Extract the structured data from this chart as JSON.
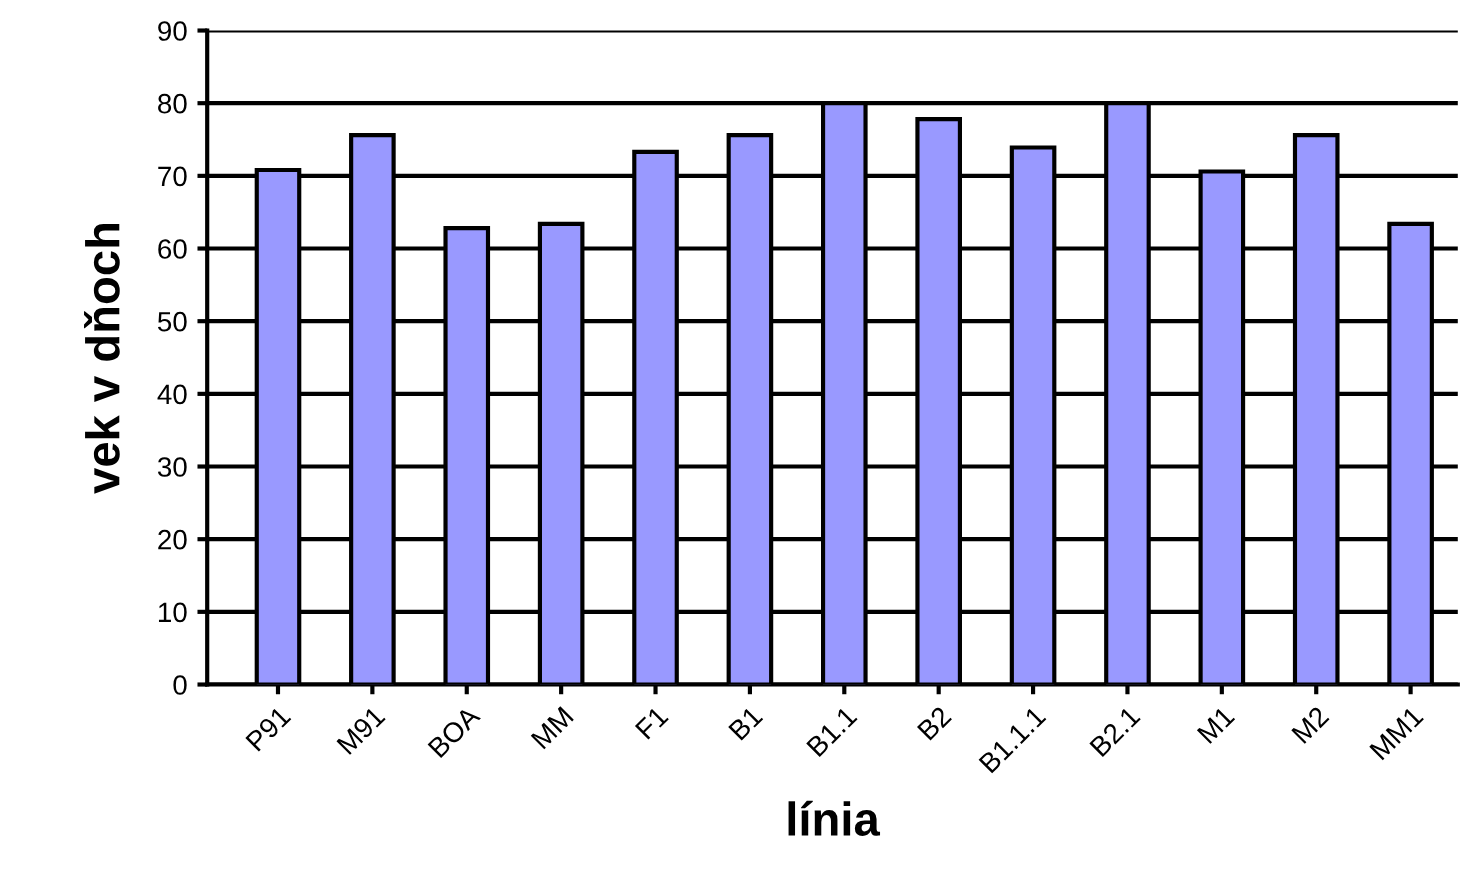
{
  "chart_data": {
    "type": "bar",
    "xlabel": "línia",
    "ylabel": "vek v dňoch",
    "categories": [
      "P91",
      "M91",
      "BOA",
      "MM",
      "F1",
      "B1",
      "B1.1",
      "B2",
      "B1.1.1",
      "B2.1",
      "M1",
      "M2",
      "MM1"
    ],
    "values": [
      70.8,
      75.6,
      62.8,
      63.4,
      73.3,
      75.6,
      80,
      77.8,
      73.9,
      80,
      70.6,
      75.6,
      63.4
    ],
    "color": "#9999ff",
    "ylim": [
      0,
      90
    ],
    "yticks": [
      0,
      10,
      20,
      30,
      40,
      50,
      60,
      70,
      80,
      90
    ],
    "grid": "y"
  }
}
